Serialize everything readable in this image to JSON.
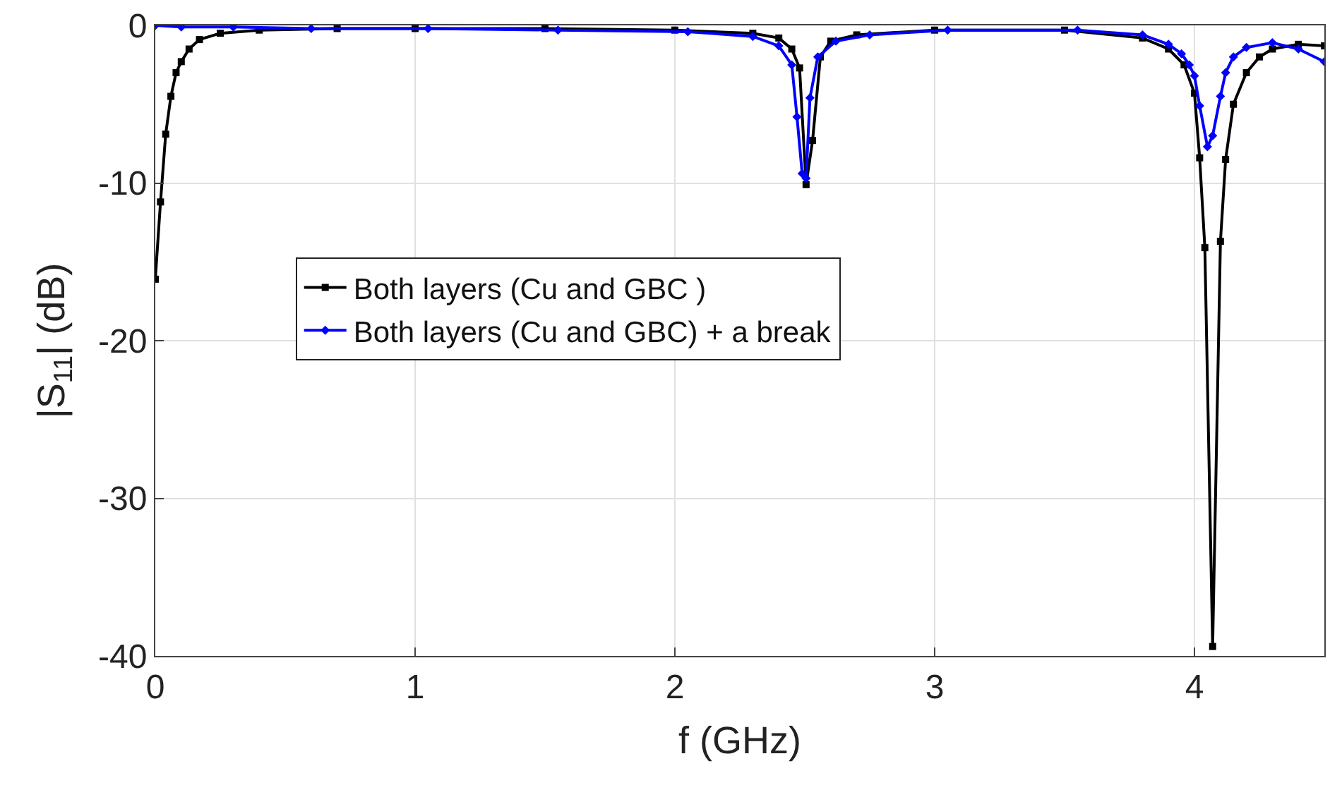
{
  "chart_data": {
    "type": "line",
    "xlabel": "f (GHz)",
    "ylabel": "|S$_{11}$| (dB)",
    "xlim": [
      0,
      4.5
    ],
    "ylim": [
      -40,
      0
    ],
    "xticks": [
      0,
      1,
      2,
      3,
      4
    ],
    "yticks": [
      -40,
      -30,
      -20,
      -10,
      0
    ],
    "grid": true,
    "legend": "center",
    "line_style": "solid",
    "series": [
      {
        "name": "Both layers (Cu and GBC )",
        "color": "#000000",
        "marker": "square",
        "x": [
          0,
          0.02,
          0.04,
          0.06,
          0.08,
          0.1,
          0.13,
          0.17,
          0.25,
          0.4,
          0.7,
          1,
          1.5,
          2,
          2.3,
          2.4,
          2.45,
          2.48,
          2.505,
          2.53,
          2.56,
          2.6,
          2.7,
          3,
          3.5,
          3.8,
          3.9,
          3.96,
          4.0,
          4.02,
          4.04,
          4.07,
          4.1,
          4.12,
          4.15,
          4.2,
          4.25,
          4.3,
          4.4,
          4.5
        ],
        "values": [
          -16.1,
          -11.2,
          -6.9,
          -4.5,
          -3.0,
          -2.3,
          -1.5,
          -0.9,
          -0.5,
          -0.3,
          -0.2,
          -0.2,
          -0.2,
          -0.3,
          -0.5,
          -0.8,
          -1.5,
          -2.7,
          -10.1,
          -7.3,
          -2.0,
          -1.0,
          -0.6,
          -0.3,
          -0.3,
          -0.8,
          -1.5,
          -2.5,
          -4.3,
          -8.4,
          -14.1,
          -39.4,
          -13.7,
          -8.5,
          -5.0,
          -3.0,
          -2.0,
          -1.5,
          -1.2,
          -1.3
        ]
      },
      {
        "name": "Both layers (Cu and GBC) + a break",
        "color": "#0000ff",
        "marker": "diamond",
        "x": [
          0,
          0.1,
          0.3,
          0.6,
          1.05,
          1.55,
          2.05,
          2.3,
          2.4,
          2.45,
          2.47,
          2.49,
          2.505,
          2.52,
          2.55,
          2.62,
          2.75,
          3.05,
          3.55,
          3.8,
          3.9,
          3.95,
          3.98,
          4.0,
          4.02,
          4.05,
          4.07,
          4.1,
          4.12,
          4.15,
          4.2,
          4.3,
          4.4,
          4.5
        ],
        "values": [
          0,
          -0.1,
          -0.1,
          -0.2,
          -0.2,
          -0.3,
          -0.4,
          -0.7,
          -1.3,
          -2.5,
          -5.8,
          -9.4,
          -9.7,
          -4.6,
          -2.0,
          -1.0,
          -0.6,
          -0.3,
          -0.3,
          -0.6,
          -1.2,
          -1.8,
          -2.5,
          -3.2,
          -5.1,
          -7.7,
          -7.0,
          -4.5,
          -3.0,
          -2.0,
          -1.4,
          -1.1,
          -1.5,
          -2.3
        ]
      }
    ]
  }
}
